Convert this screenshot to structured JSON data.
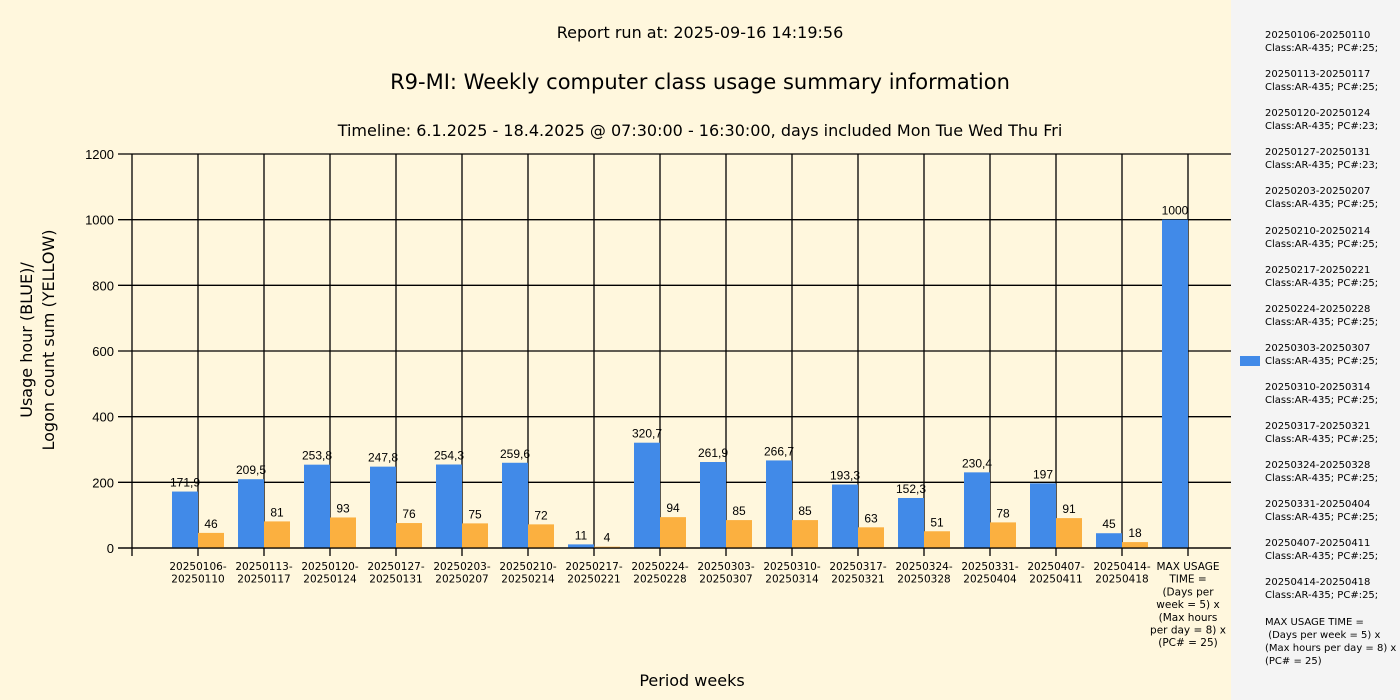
{
  "header": {
    "report_run": "Report run at: 2025-09-16 14:19:56",
    "subtitle": "Timeline:  6.1.2025  - 18.4.2025  @  07:30:00 -  16:30:00, days included Mon Tue Wed Thu Fri"
  },
  "chart_data": {
    "type": "bar",
    "title": "R9-MI: Weekly computer class usage summary information",
    "xlabel": "Period weeks",
    "ylabel": [
      "Usage hour (BLUE)/",
      "Logon count sum (YELLOW)"
    ],
    "ylim": [
      0,
      1200
    ],
    "yticks": [
      "0",
      "200",
      "400",
      "600",
      "800",
      "1000",
      "1200"
    ],
    "grid": true,
    "legend_position": "right",
    "categories": [
      "20250106-\n20250110",
      "20250113-\n20250117",
      "20250120-\n20250124",
      "20250127-\n20250131",
      "20250203-\n20250207",
      "20250210-\n20250214",
      "20250217-\n20250221",
      "20250224-\n20250228",
      "20250303-\n20250307",
      "20250310-\n20250314",
      "20250317-\n20250321",
      "20250324-\n20250328",
      "20250331-\n20250404",
      "20250407-\n20250411",
      "20250414-\n20250418",
      "MAX USAGE\nTIME =\n(Days per\nweek = 5) x\n(Max hours\nper day = 8) x\n(PC# = 25)"
    ],
    "series": [
      {
        "color": "#418ae8",
        "values": [
          171.9,
          209.5,
          253.8,
          247.8,
          254.3,
          259.6,
          11,
          320.7,
          261.9,
          266.7,
          193.3,
          152.3,
          230.4,
          197,
          45,
          1000
        ],
        "labels": [
          "171,9",
          "209,5",
          "253,8",
          "247,8",
          "254,3",
          "259,6",
          "11",
          "320,7",
          "261,9",
          "266,7",
          "193,3",
          "152,3",
          "230,4",
          "197",
          "45",
          "1000"
        ]
      },
      {
        "color": "#fbb040",
        "values": [
          46,
          81,
          93,
          76,
          75,
          72,
          4,
          94,
          85,
          85,
          63,
          51,
          78,
          91,
          18,
          null
        ],
        "labels": [
          "46",
          "81",
          "93",
          "76",
          "75",
          "72",
          "4",
          "94",
          "85",
          "85",
          "63",
          "51",
          "78",
          "91",
          "18",
          ""
        ]
      }
    ],
    "legend_entries": [
      "20250106-20250110\nClass:AR-435; PC#:25;",
      "20250113-20250117\nClass:AR-435; PC#:25;",
      "20250120-20250124\nClass:AR-435; PC#:23;",
      "20250127-20250131\nClass:AR-435; PC#:23;",
      "20250203-20250207\nClass:AR-435; PC#:25;",
      "20250210-20250214\nClass:AR-435; PC#:25;",
      "20250217-20250221\nClass:AR-435; PC#:25;",
      "20250224-20250228\nClass:AR-435; PC#:25;",
      "20250303-20250307\nClass:AR-435; PC#:25;",
      "20250310-20250314\nClass:AR-435; PC#:25;",
      "20250317-20250321\nClass:AR-435; PC#:25;",
      "20250324-20250328\nClass:AR-435; PC#:25;",
      "20250331-20250404\nClass:AR-435; PC#:25;",
      "20250407-20250411\nClass:AR-435; PC#:25;",
      "20250414-20250418\nClass:AR-435; PC#:25;",
      "MAX USAGE TIME =\n (Days per week = 5) x (Max hours per day = 8) x (PC# = 25)"
    ],
    "legend_swatch_entry": 8
  }
}
